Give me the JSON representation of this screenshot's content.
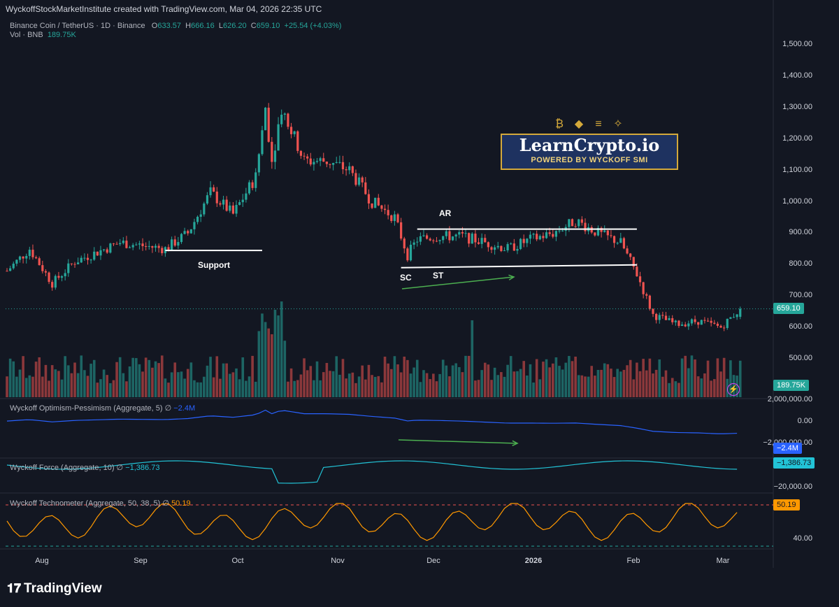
{
  "header": {
    "credit": "WyckoffStockMarketInstitute created with TradingView.com, Mar 04, 2026 22:35 UTC"
  },
  "legend": {
    "symbol": "Binance Coin / TetherUS · 1D · Binance",
    "o_label": "O",
    "o_value": "633.57",
    "h_label": "H",
    "h_value": "666.16",
    "l_label": "L",
    "l_value": "626.20",
    "c_label": "C",
    "c_value": "659.10",
    "change": "+25.54 (+4.03%)",
    "vol_label": "Vol · BNB",
    "vol_value": "189.75K"
  },
  "price_axis": [
    "1,500.00",
    "1,400.00",
    "1,300.00",
    "1,200.00",
    "1,100.00",
    "1,000.00",
    "900.00",
    "800.00",
    "700.00",
    "600.00",
    "500.00"
  ],
  "price_badge": "659.10",
  "volume_badge": "189.75K",
  "panes": {
    "optimism": {
      "title": "Wyckoff Optimism-Pessimism (Aggregate, 5)",
      "sep": "∅",
      "value": "−2.4M",
      "ticks": [
        "2,000,000.00",
        "0.00",
        "−2,000,000.00"
      ],
      "badge": "−2.4M"
    },
    "force": {
      "title": "Wyckoff Force (Aggregate, 10)",
      "sep": "∅",
      "value": "−1,386.73",
      "ticks": [
        "−20,000.00"
      ],
      "badge": "−1,386.73"
    },
    "technometer": {
      "title": "Wyckoff Technometer (Aggregate, 50, 38, 5)",
      "sep": "∅",
      "value": "50.19",
      "ticks": [
        "40.00"
      ],
      "badge": "50.19"
    }
  },
  "time_axis": [
    {
      "label": "Aug",
      "bold": false
    },
    {
      "label": "Sep",
      "bold": false
    },
    {
      "label": "Oct",
      "bold": false
    },
    {
      "label": "Nov",
      "bold": false
    },
    {
      "label": "Dec",
      "bold": false
    },
    {
      "label": "2026",
      "bold": true
    },
    {
      "label": "Feb",
      "bold": false
    },
    {
      "label": "Mar",
      "bold": false
    }
  ],
  "annotations": {
    "support": "Support",
    "ar": "AR",
    "sc": "SC",
    "st": "ST"
  },
  "logo": {
    "brand": "LearnCrypto.io",
    "sub": "POWERED BY WYCKOFF SMI",
    "icons": [
      "bitcoin-icon",
      "ethereum-icon",
      "solana-icon",
      "bnb-icon"
    ]
  },
  "footer": {
    "brand": "TradingView"
  },
  "colors": {
    "up": "#26a69a",
    "down": "#ef5350",
    "optimism": "#2962ff",
    "force": "#22c3d6",
    "technometer": "#ff9800",
    "background": "#131722"
  },
  "chart_data": {
    "type": "candlestick",
    "title": "Binance Coin / TetherUS · 1D · Binance",
    "x_start": "Jul 2025",
    "x_end": "Mar 04, 2026",
    "xticks": [
      "Aug",
      "Sep",
      "Oct",
      "Nov",
      "Dec",
      "2026",
      "Feb",
      "Mar"
    ],
    "ylim": [
      450,
      1560
    ],
    "close_path": [
      [
        "Jul 20",
        780
      ],
      [
        "Jul 27",
        850
      ],
      [
        "Aug 03",
        740
      ],
      [
        "Aug 10",
        810
      ],
      [
        "Aug 17",
        840
      ],
      [
        "Aug 24",
        870
      ],
      [
        "Aug 31",
        860
      ],
      [
        "Sep 07",
        850
      ],
      [
        "Sep 14",
        900
      ],
      [
        "Sep 21",
        1030
      ],
      [
        "Sep 28",
        960
      ],
      [
        "Oct 05",
        1080
      ],
      [
        "Oct 08",
        1300
      ],
      [
        "Oct 10",
        1130
      ],
      [
        "Oct 13",
        1300
      ],
      [
        "Oct 20",
        1130
      ],
      [
        "Oct 27",
        1130
      ],
      [
        "Nov 03",
        1100
      ],
      [
        "Nov 10",
        1000
      ],
      [
        "Nov 17",
        950
      ],
      [
        "Nov 21",
        830
      ],
      [
        "Nov 24",
        880
      ],
      [
        "Dec 01",
        890
      ],
      [
        "Dec 08",
        890
      ],
      [
        "Dec 15",
        870
      ],
      [
        "Dec 22",
        850
      ],
      [
        "Dec 29",
        880
      ],
      [
        "Jan 05",
        900
      ],
      [
        "Jan 12",
        940
      ],
      [
        "Jan 19",
        900
      ],
      [
        "Jan 26",
        870
      ],
      [
        "Jan 31",
        770
      ],
      [
        "Feb 05",
        640
      ],
      [
        "Feb 12",
        610
      ],
      [
        "Feb 19",
        620
      ],
      [
        "Feb 26",
        600
      ],
      [
        "Mar 04",
        659.1
      ]
    ],
    "last": {
      "open": 633.57,
      "high": 666.16,
      "low": 626.2,
      "close": 659.1,
      "change": 25.54,
      "change_pct": 4.03,
      "volume": "189.75K"
    },
    "levels": [
      {
        "label": "Support",
        "price": 845
      },
      {
        "label": "AR",
        "price": 913
      },
      {
        "label": "SC",
        "price": 790
      }
    ],
    "volume_spike": "Oct 10",
    "indicators": [
      {
        "name": "Wyckoff Optimism-Pessimism (Aggregate, 5)",
        "last": "−2.4M"
      },
      {
        "name": "Wyckoff Force (Aggregate, 10)",
        "last": "−1,386.73"
      },
      {
        "name": "Wyckoff Technometer (Aggregate, 50, 38, 5)",
        "last": "50.19"
      }
    ]
  }
}
